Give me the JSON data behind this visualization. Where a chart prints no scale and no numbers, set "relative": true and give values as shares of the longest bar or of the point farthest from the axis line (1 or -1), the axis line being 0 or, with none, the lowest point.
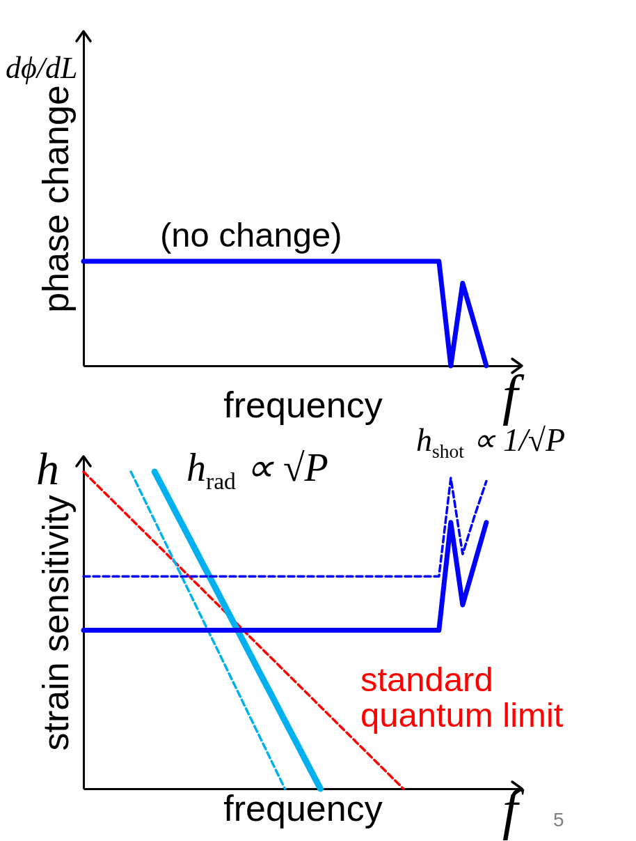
{
  "chart_data": [
    {
      "type": "line",
      "relative": true,
      "xlabel": "frequency",
      "ylabel": "phase change",
      "annotations": [
        "dϕ/dL",
        "(no change)",
        "f"
      ],
      "categories": [
        null,
        null,
        null,
        null,
        null,
        null,
        null,
        null,
        null,
        null,
        null,
        null,
        null,
        null,
        null,
        null,
        null,
        null,
        null,
        null,
        null,
        null,
        null,
        null,
        null,
        null,
        null,
        null,
        null,
        null,
        null,
        null,
        null,
        null,
        null,
        null,
        null,
        null
      ],
      "series": [
        {
          "color": "#0000ff",
          "line_style": "solid",
          "values": [
            1,
            1,
            1,
            1,
            1,
            1,
            1,
            1,
            1,
            1,
            1,
            1,
            1,
            1,
            1,
            1,
            1,
            1,
            1,
            1,
            1,
            1,
            1,
            1,
            1,
            1,
            1,
            1,
            1,
            1,
            1,
            0,
            0.79,
            0.4,
            0,
            null,
            null,
            null
          ]
        }
      ]
    },
    {
      "type": "line",
      "relative": true,
      "xlabel": "frequency",
      "ylabel": "strain sensitivity",
      "annotations": [
        "h",
        "h$_{rad}$ ∝ √P",
        "h$_{shot}$ ∝ 1/√P",
        "standard quantum limit",
        "f",
        "5"
      ],
      "categories": [
        null,
        null,
        null,
        null,
        null,
        null,
        null,
        null,
        null,
        null,
        null,
        null,
        null,
        null,
        null,
        null,
        null,
        null,
        null,
        null,
        null,
        null,
        null,
        null,
        null,
        null,
        null,
        null,
        null,
        null,
        null,
        null,
        null,
        null,
        null,
        null,
        null,
        null
      ],
      "series": [
        {
          "color": "#ff0000",
          "line_style": "dashed",
          "values": [
            1,
            0.963,
            0.926,
            0.889,
            0.852,
            0.815,
            0.778,
            0.741,
            0.704,
            0.667,
            0.63,
            0.593,
            0.556,
            0.519,
            0.481,
            0.444,
            0.407,
            0.37,
            0.333,
            0.296,
            0.259,
            0.222,
            0.185,
            0.148,
            0.111,
            0.074,
            0.037,
            0,
            null,
            null,
            null,
            null,
            null,
            null,
            null,
            null,
            null,
            null
          ]
        },
        {
          "color": "#00b0f0",
          "line_style": "dashed",
          "values": [
            null,
            null,
            null,
            null,
            1,
            0.923,
            0.846,
            0.769,
            0.692,
            0.615,
            0.538,
            0.462,
            0.385,
            0.308,
            0.231,
            0.154,
            0.077,
            0,
            null,
            null,
            null,
            null,
            null,
            null,
            null,
            null,
            null,
            null,
            null,
            null,
            null,
            null,
            null,
            null,
            null,
            null,
            null,
            null
          ]
        },
        {
          "color": "#00b0f0",
          "line_style": "solid",
          "values": [
            null,
            null,
            null,
            null,
            null,
            null,
            1,
            0.929,
            0.857,
            0.786,
            0.714,
            0.643,
            0.571,
            0.5,
            0.429,
            0.357,
            0.286,
            0.214,
            0.143,
            0.071,
            0,
            null,
            null,
            null,
            null,
            null,
            null,
            null,
            null,
            null,
            null,
            null,
            null,
            null,
            null,
            null,
            null,
            null
          ]
        },
        {
          "color": "#0000ff",
          "line_style": "dashed",
          "values": [
            0.67,
            0.67,
            0.67,
            0.67,
            0.67,
            0.67,
            0.67,
            0.67,
            0.67,
            0.67,
            0.67,
            0.67,
            0.67,
            0.67,
            0.67,
            0.67,
            0.67,
            0.67,
            0.67,
            0.67,
            0.67,
            0.67,
            0.67,
            0.67,
            0.67,
            0.67,
            0.67,
            0.67,
            0.67,
            0.67,
            0.67,
            0.98,
            0.74,
            0.86,
            0.97,
            null,
            null,
            null
          ]
        },
        {
          "color": "#0000ff",
          "line_style": "solid",
          "values": [
            0.5,
            0.5,
            0.5,
            0.5,
            0.5,
            0.5,
            0.5,
            0.5,
            0.5,
            0.5,
            0.5,
            0.5,
            0.5,
            0.5,
            0.5,
            0.5,
            0.5,
            0.5,
            0.5,
            0.5,
            0.5,
            0.5,
            0.5,
            0.5,
            0.5,
            0.5,
            0.5,
            0.5,
            0.5,
            0.5,
            0.5,
            0.84,
            0.58,
            0.71,
            0.84,
            null,
            null,
            null
          ]
        }
      ]
    }
  ]
}
